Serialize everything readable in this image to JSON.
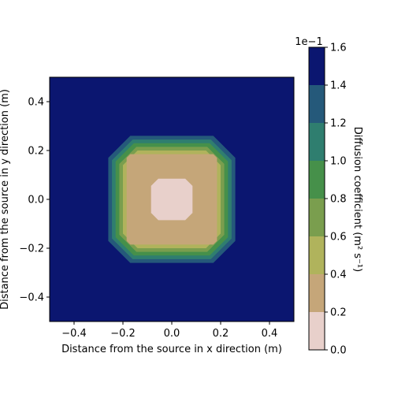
{
  "chart_data": {
    "type": "heatmap",
    "plot_kind": "filled-contour",
    "xlabel": "Distance from the source in x direction (m)",
    "ylabel": "Distance from the source in y direction (m)",
    "xlim": [
      -0.5,
      0.5
    ],
    "ylim": [
      -0.5,
      0.5
    ],
    "xticks": [
      -0.4,
      -0.2,
      0.0,
      0.2,
      0.4
    ],
    "yticks": [
      -0.4,
      -0.2,
      0.0,
      0.2,
      0.4
    ],
    "xtick_labels": [
      "−0.4",
      "−0.2",
      "0.0",
      "0.2",
      "0.4"
    ],
    "ytick_labels": [
      "−0.4",
      "−0.2",
      "0.0",
      "0.2",
      "0.4"
    ],
    "grid": false,
    "colorbar": {
      "label": "Diffusion coefficient (m² s⁻¹)",
      "scale_note": "1e−1",
      "range": [
        0.0,
        1.6
      ],
      "ticks": [
        0.0,
        0.2,
        0.4,
        0.6,
        0.8,
        1.0,
        1.2,
        1.4,
        1.6
      ],
      "tick_labels": [
        "0.0",
        "0.2",
        "0.4",
        "0.6",
        "0.8",
        "1.0",
        "1.2",
        "1.4",
        "1.6"
      ],
      "colors": [
        "#e8d0cb",
        "#c5a679",
        "#b0b35c",
        "#7a9e4e",
        "#46904a",
        "#2f7e6f",
        "#25597a",
        "#0b1670"
      ]
    },
    "contour_levels": [
      {
        "range": [
          1.4,
          1.6
        ],
        "region": "background",
        "color": "#0b1670"
      },
      {
        "range": [
          1.2,
          1.4
        ],
        "half_width": 0.26,
        "corner_cut": 0.09,
        "color": "#25597a"
      },
      {
        "range": [
          1.0,
          1.2
        ],
        "half_width": 0.245,
        "corner_cut": 0.085,
        "color": "#2f7e6f"
      },
      {
        "range": [
          0.8,
          1.0
        ],
        "half_width": 0.23,
        "corner_cut": 0.075,
        "color": "#46904a"
      },
      {
        "range": [
          0.6,
          0.8
        ],
        "half_width": 0.215,
        "corner_cut": 0.07,
        "color": "#7a9e4e"
      },
      {
        "range": [
          0.4,
          0.6
        ],
        "half_width": 0.2,
        "corner_cut": 0.06,
        "color": "#b0b35c"
      },
      {
        "range": [
          0.2,
          0.4
        ],
        "half_width": 0.185,
        "corner_cut": 0.015,
        "color": "#c5a679"
      },
      {
        "range": [
          0.0,
          0.2
        ],
        "half_width": 0.085,
        "corner_cut": 0.03,
        "color": "#e8d0cb"
      }
    ]
  }
}
